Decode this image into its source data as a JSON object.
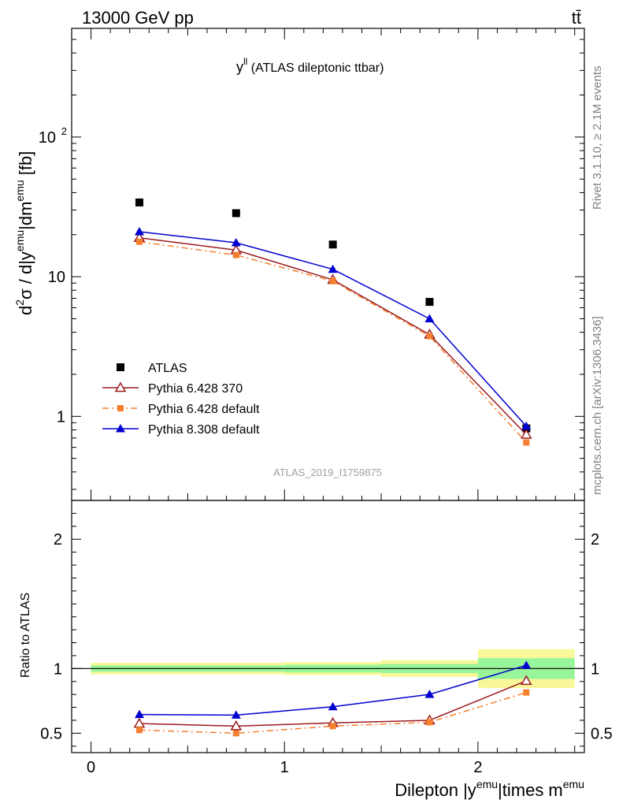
{
  "header": {
    "energy": "13000 GeV pp",
    "process": "tt̄"
  },
  "plot_title": {
    "main": "y",
    "sup": "ll",
    "rest": " (ATLAS dileptonic ttbar)"
  },
  "analysis_id": "ATLAS_2019_I1759875",
  "side_labels": {
    "rivet": "Rivet 3.1.10, ≥ 2.1M events",
    "mcplots": "mcplots.cern.ch [arXiv:1306.3436]"
  },
  "chart_data": [
    {
      "type": "scatter",
      "panel": "main",
      "ylabel": {
        "a": "d",
        "a_sup": "2",
        "b": "σ / d|y",
        "b_sup": "emu",
        "c": "|dm",
        "c_sup": "emu",
        "d": " [fb]"
      },
      "yscale": "log",
      "ylim": [
        0.25,
        600
      ],
      "xlim": [
        -0.1,
        2.55
      ],
      "grid": false,
      "legend_position": "lower-left",
      "x": [
        0.25,
        0.75,
        1.25,
        1.75,
        2.25
      ],
      "y_tick_labels": {
        "1": "1",
        "10": "10",
        "100": {
          "base": "10",
          "sup": "2"
        }
      },
      "series": [
        {
          "name": "ATLAS",
          "values": [
            34,
            28.5,
            17,
            6.6,
            0.82
          ],
          "color": "#000000",
          "marker": "square",
          "line": "none"
        },
        {
          "name": "Pythia 6.428 370",
          "values": [
            19,
            15.5,
            9.5,
            3.85,
            0.74
          ],
          "color": "#9b1b1f",
          "marker": "open-triangle",
          "line": "solid"
        },
        {
          "name": "Pythia 6.428 default",
          "values": [
            17.8,
            14.3,
            9.3,
            3.75,
            0.65
          ],
          "color": "#f57f2e",
          "marker": "filled-square",
          "line": "dash-dot"
        },
        {
          "name": "Pythia 8.308 default",
          "values": [
            21,
            17.5,
            11.3,
            5.0,
            0.85
          ],
          "color": "#0000d0",
          "marker": "filled-triangle",
          "line": "solid"
        }
      ]
    },
    {
      "type": "line",
      "panel": "ratio",
      "ylabel": "Ratio to ATLAS",
      "xlabel": {
        "a": "Dilepton |y",
        "a_sup": "emu",
        "b": "|times m",
        "b_sup": "emu"
      },
      "ylim": [
        0.35,
        2.3
      ],
      "xlim": [
        -0.1,
        2.55
      ],
      "x_ticks": [
        0,
        1,
        2
      ],
      "y_ticks": [
        0.5,
        1,
        2
      ],
      "bands": [
        {
          "xlo": 0.0,
          "xhi": 1.0,
          "stat": [
            0.975,
            1.025
          ],
          "total": [
            0.955,
            1.045
          ]
        },
        {
          "xlo": 1.0,
          "xhi": 1.5,
          "stat": [
            0.97,
            1.03
          ],
          "total": [
            0.95,
            1.05
          ]
        },
        {
          "xlo": 1.5,
          "xhi": 2.0,
          "stat": [
            0.965,
            1.035
          ],
          "total": [
            0.935,
            1.065
          ]
        },
        {
          "xlo": 2.0,
          "xhi": 2.5,
          "stat": [
            0.92,
            1.08
          ],
          "total": [
            0.85,
            1.15
          ]
        }
      ],
      "band_colors": {
        "stat": "#99f599",
        "total": "#f8f89a"
      },
      "x": [
        0.25,
        0.75,
        1.25,
        1.75,
        2.25
      ],
      "series": [
        {
          "name": "Pythia 6.428 370",
          "values": [
            0.575,
            0.555,
            0.58,
            0.6,
            0.905
          ],
          "color": "#9b1b1f",
          "marker": "open-triangle",
          "line": "solid"
        },
        {
          "name": "Pythia 6.428 default",
          "values": [
            0.525,
            0.5,
            0.555,
            0.585,
            0.815
          ],
          "color": "#f57f2e",
          "marker": "filled-square",
          "line": "dash-dot"
        },
        {
          "name": "Pythia 8.308 default",
          "values": [
            0.645,
            0.64,
            0.705,
            0.8,
            1.025
          ],
          "color": "#0000d0",
          "marker": "filled-triangle",
          "line": "solid"
        }
      ]
    }
  ]
}
